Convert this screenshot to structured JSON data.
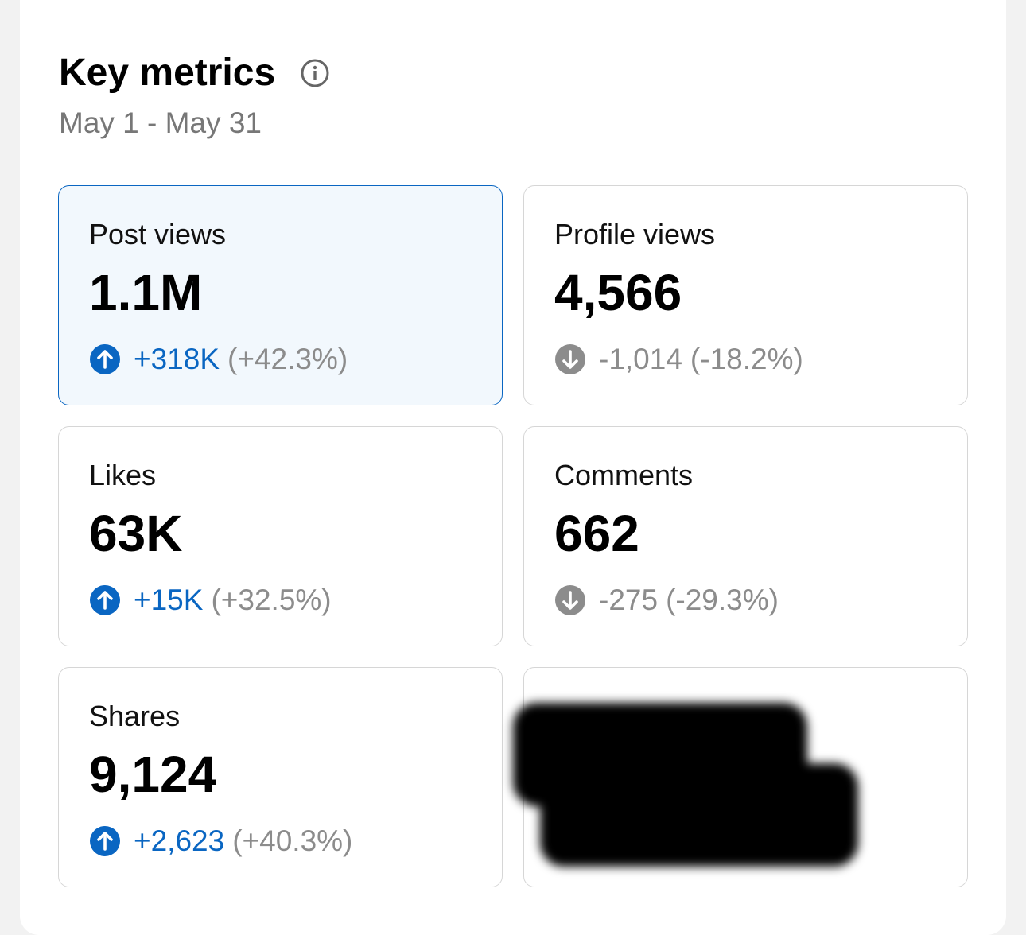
{
  "header": {
    "title": "Key metrics",
    "date_range": "May 1 - May 31"
  },
  "cards": [
    {
      "label": "Post views",
      "value": "1.1M",
      "change": "+318K",
      "percent": "(+42.3%)"
    },
    {
      "label": "Profile views",
      "value": "4,566",
      "change": "-1,014",
      "percent": "(-18.2%)"
    },
    {
      "label": "Likes",
      "value": "63K",
      "change": "+15K",
      "percent": "(+32.5%)"
    },
    {
      "label": "Comments",
      "value": "662",
      "change": "-275",
      "percent": "(-29.3%)"
    },
    {
      "label": "Shares",
      "value": "9,124",
      "change": "+2,623",
      "percent": "(+40.3%)"
    }
  ]
}
